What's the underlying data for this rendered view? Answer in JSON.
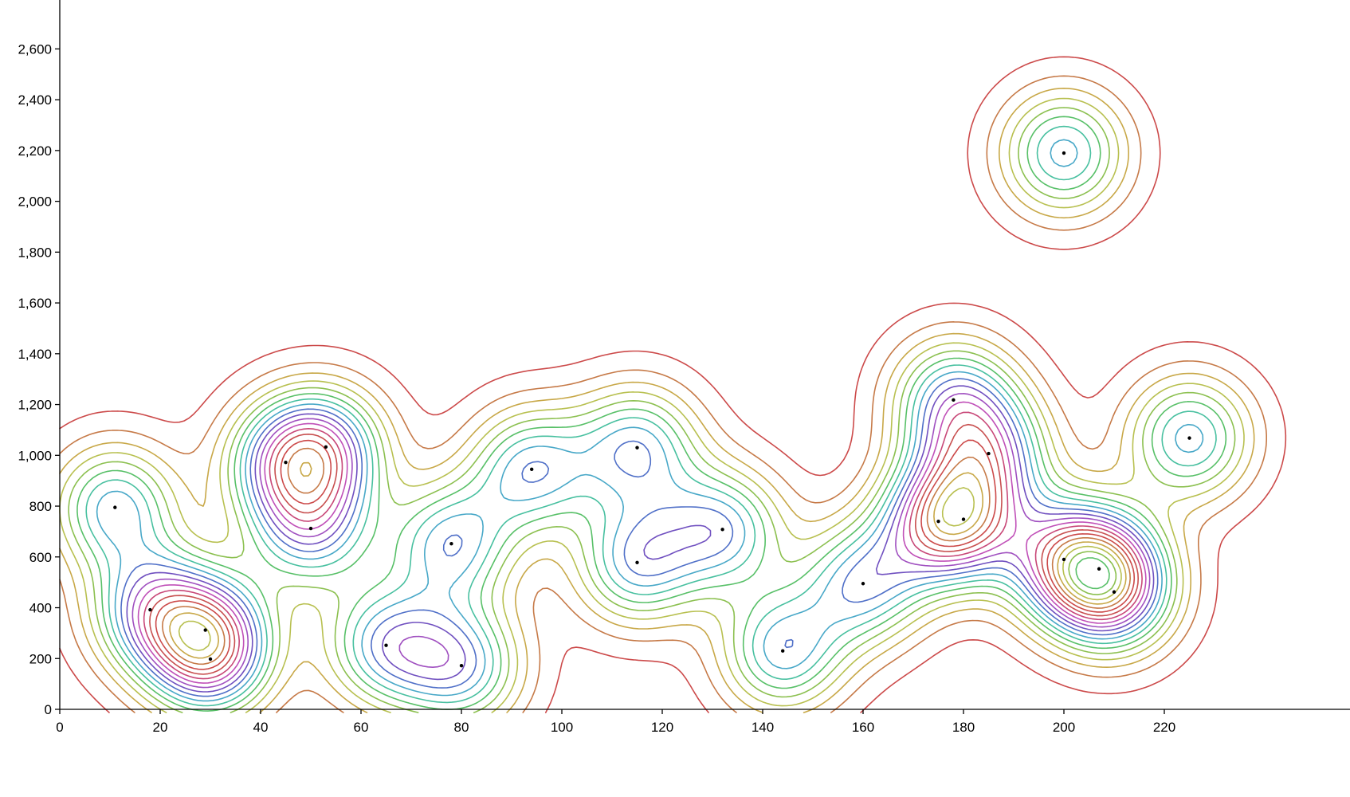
{
  "chart_data": {
    "type": "scatter",
    "subtype": "density-contour",
    "title": "",
    "xlabel": "",
    "ylabel": "",
    "xlim": [
      0,
      236
    ],
    "ylim": [
      0,
      2800
    ],
    "x_ticks": [
      "0",
      "20",
      "40",
      "60",
      "80",
      "100",
      "120",
      "140",
      "160",
      "180",
      "200",
      "220"
    ],
    "y_ticks": [
      "0",
      "200",
      "400",
      "600",
      "800",
      "1,000",
      "1,200",
      "1,400",
      "1,600",
      "1,800",
      "2,000",
      "2,200",
      "2,400",
      "2,600"
    ],
    "grid": false,
    "legend": "none",
    "points": [
      {
        "x": 11,
        "y": 795
      },
      {
        "x": 18,
        "y": 392
      },
      {
        "x": 29,
        "y": 312
      },
      {
        "x": 30,
        "y": 198
      },
      {
        "x": 45,
        "y": 972
      },
      {
        "x": 50,
        "y": 712
      },
      {
        "x": 53,
        "y": 1033
      },
      {
        "x": 65,
        "y": 252
      },
      {
        "x": 78,
        "y": 652
      },
      {
        "x": 80,
        "y": 172
      },
      {
        "x": 94,
        "y": 945
      },
      {
        "x": 115,
        "y": 1030
      },
      {
        "x": 115,
        "y": 578
      },
      {
        "x": 132,
        "y": 708
      },
      {
        "x": 144,
        "y": 230
      },
      {
        "x": 160,
        "y": 495
      },
      {
        "x": 175,
        "y": 740
      },
      {
        "x": 178,
        "y": 1218
      },
      {
        "x": 180,
        "y": 748
      },
      {
        "x": 185,
        "y": 1007
      },
      {
        "x": 200,
        "y": 2190
      },
      {
        "x": 200,
        "y": 590
      },
      {
        "x": 207,
        "y": 553
      },
      {
        "x": 210,
        "y": 462
      },
      {
        "x": 225,
        "y": 1068
      }
    ],
    "contour_palette": [
      "#cc4a4a",
      "#c67a48",
      "#c8a848",
      "#b8c050",
      "#8cc050",
      "#58c068",
      "#48c0a0",
      "#48a8c8",
      "#5070c8",
      "#7050c0",
      "#a050c0",
      "#c050b8",
      "#c84878",
      "#c85050"
    ]
  }
}
